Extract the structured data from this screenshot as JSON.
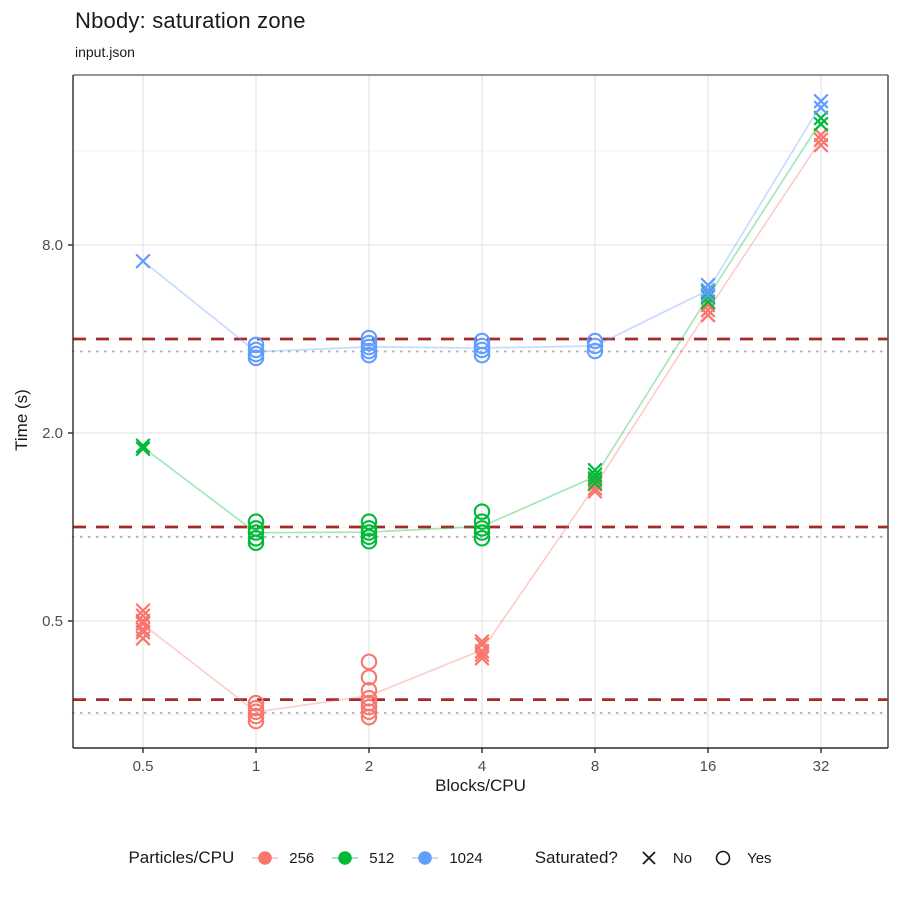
{
  "header": {
    "title": "Nbody: saturation zone",
    "subtitle": "input.json"
  },
  "chart_data": {
    "type": "scatter",
    "title": "Nbody: saturation zone",
    "subtitle": "input.json",
    "xlabel": "Blocks/CPU",
    "ylabel": "Time (s)",
    "x_scale": "log2",
    "y_scale": "log",
    "x_ticks": [
      0.5,
      1,
      2,
      4,
      8,
      16,
      32
    ],
    "x_tick_labels": [
      "0.5",
      "1",
      "2",
      "4",
      "8",
      "16",
      "32"
    ],
    "y_ticks": [
      0.5,
      2.0,
      8.0
    ],
    "y_tick_labels": [
      "0.5",
      "2.0",
      "8.0"
    ],
    "y_minor_gridlines": [
      0.25,
      1.0,
      4.0,
      16.0
    ],
    "x_range": [
      0.33,
      48
    ],
    "y_range": [
      0.2,
      28
    ],
    "grid": true,
    "legend_position": "bottom",
    "series": [
      {
        "name": "256",
        "color": "#F8766D",
        "groups": [
          {
            "x": 0.5,
            "saturated": false,
            "times": [
              0.54,
              0.52,
              0.5,
              0.49,
              0.47,
              0.46,
              0.44
            ]
          },
          {
            "x": 1,
            "saturated": true,
            "times": [
              0.273,
              0.263,
              0.256,
              0.248,
              0.239
            ]
          },
          {
            "x": 2,
            "saturated": true,
            "times": [
              0.37,
              0.33,
              0.3,
              0.283,
              0.273,
              0.265,
              0.256,
              0.246
            ]
          },
          {
            "x": 4,
            "saturated": false,
            "times": [
              0.43,
              0.42,
              0.4,
              0.39,
              0.38
            ]
          },
          {
            "x": 8,
            "saturated": false,
            "times": [
              1.41,
              1.37,
              1.33,
              1.3
            ]
          },
          {
            "x": 16,
            "saturated": false,
            "times": [
              5.14,
              4.95,
              4.77
            ]
          },
          {
            "x": 32,
            "saturated": false,
            "times": [
              18.0,
              17.4,
              16.7
            ]
          }
        ]
      },
      {
        "name": "512",
        "color": "#00BA38",
        "groups": [
          {
            "x": 0.5,
            "saturated": false,
            "times": [
              1.82,
              1.78
            ]
          },
          {
            "x": 1,
            "saturated": true,
            "times": [
              1.04,
              0.99,
              0.96,
              0.92,
              0.89
            ]
          },
          {
            "x": 2,
            "saturated": true,
            "times": [
              1.04,
              0.99,
              0.96,
              0.93,
              0.9
            ]
          },
          {
            "x": 4,
            "saturated": true,
            "times": [
              1.12,
              1.04,
              0.99,
              0.96,
              0.92
            ]
          },
          {
            "x": 8,
            "saturated": false,
            "times": [
              1.52,
              1.47,
              1.43,
              1.38
            ]
          },
          {
            "x": 16,
            "saturated": false,
            "times": [
              5.66,
              5.45,
              5.26
            ]
          },
          {
            "x": 32,
            "saturated": false,
            "times": [
              20.4,
              19.5
            ]
          }
        ]
      },
      {
        "name": "1024",
        "color": "#619CFF",
        "groups": [
          {
            "x": 0.5,
            "saturated": false,
            "times": [
              7.1
            ]
          },
          {
            "x": 1,
            "saturated": true,
            "times": [
              3.83,
              3.69,
              3.58,
              3.48
            ]
          },
          {
            "x": 2,
            "saturated": true,
            "times": [
              4.03,
              3.88,
              3.77,
              3.66,
              3.55
            ]
          },
          {
            "x": 4,
            "saturated": true,
            "times": [
              3.94,
              3.8,
              3.69,
              3.55
            ]
          },
          {
            "x": 8,
            "saturated": true,
            "times": [
              3.94,
              3.8,
              3.66
            ]
          },
          {
            "x": 16,
            "saturated": false,
            "times": [
              5.95,
              5.73,
              5.53
            ]
          },
          {
            "x": 32,
            "saturated": false,
            "times": [
              23.1,
              22.0
            ]
          }
        ]
      }
    ],
    "reference_lines": {
      "dashed": {
        "style": "dashed",
        "color": "#A52A2A",
        "values": [
          4.0,
          1.0,
          0.28
        ]
      },
      "dotted": {
        "style": "dotted",
        "color": "#B3B3B3",
        "values": [
          3.65,
          0.93,
          0.254
        ]
      }
    }
  },
  "legend": {
    "color": {
      "title": "Particles/CPU",
      "items": [
        {
          "label": "256",
          "color": "#F8766D"
        },
        {
          "label": "512",
          "color": "#00BA38"
        },
        {
          "label": "1024",
          "color": "#619CFF"
        }
      ]
    },
    "shape": {
      "title": "Saturated?",
      "items": [
        {
          "label": "No",
          "glyph": "x-mark"
        },
        {
          "label": "Yes",
          "glyph": "open-circle"
        }
      ]
    }
  },
  "colors": {
    "major_grid": "#E6E6E6",
    "minor_grid": "#F1F1F1",
    "axis_line": "#2B2B2B",
    "panel_border": "#595959",
    "tick_label": "#4D4D4D"
  }
}
